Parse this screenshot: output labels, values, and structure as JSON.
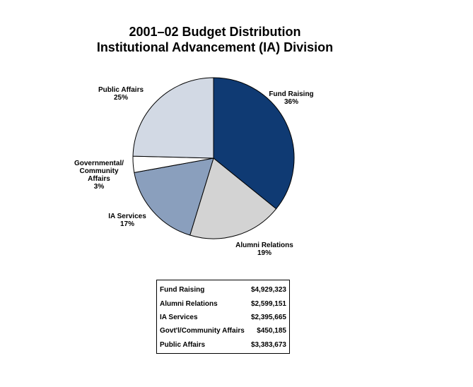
{
  "chart_data": {
    "type": "pie",
    "title": "2001–02 Budget Distribution",
    "subtitle": "Institutional Advancement (IA) Division",
    "start_angle_deg": 0,
    "direction": "clockwise",
    "slices": [
      {
        "key": "fund-raising",
        "label_lines": [
          "Fund Raising",
          "36%"
        ],
        "value": 4929323,
        "percent": 36,
        "color": "#0f3a73"
      },
      {
        "key": "alumni-relations",
        "label_lines": [
          "Alumni Relations",
          "19%"
        ],
        "value": 2599151,
        "percent": 19,
        "color": "#d3d3d3"
      },
      {
        "key": "ia-services",
        "label_lines": [
          "IA Services",
          "17%"
        ],
        "value": 2395665,
        "percent": 17,
        "color": "#8a9fbd"
      },
      {
        "key": "governmental-community-affairs",
        "label_lines": [
          "Governmental/",
          "Community",
          "Affairs",
          "3%"
        ],
        "value": 450185,
        "percent": 3,
        "color": "#ffffff"
      },
      {
        "key": "public-affairs",
        "label_lines": [
          "Public Affairs",
          "25%"
        ],
        "value": 3383673,
        "percent": 25,
        "color": "#d2d9e4"
      }
    ],
    "table": [
      {
        "name": "Fund Raising",
        "amount": "$4,929,323"
      },
      {
        "name": "Alumni Relations",
        "amount": "$2,599,151"
      },
      {
        "name": "IA Services",
        "amount": "$2,395,665"
      },
      {
        "name": "Govt'l/Community Affairs",
        "amount": "$450,185"
      },
      {
        "name": "Public Affairs",
        "amount": "$3,383,673"
      }
    ]
  }
}
